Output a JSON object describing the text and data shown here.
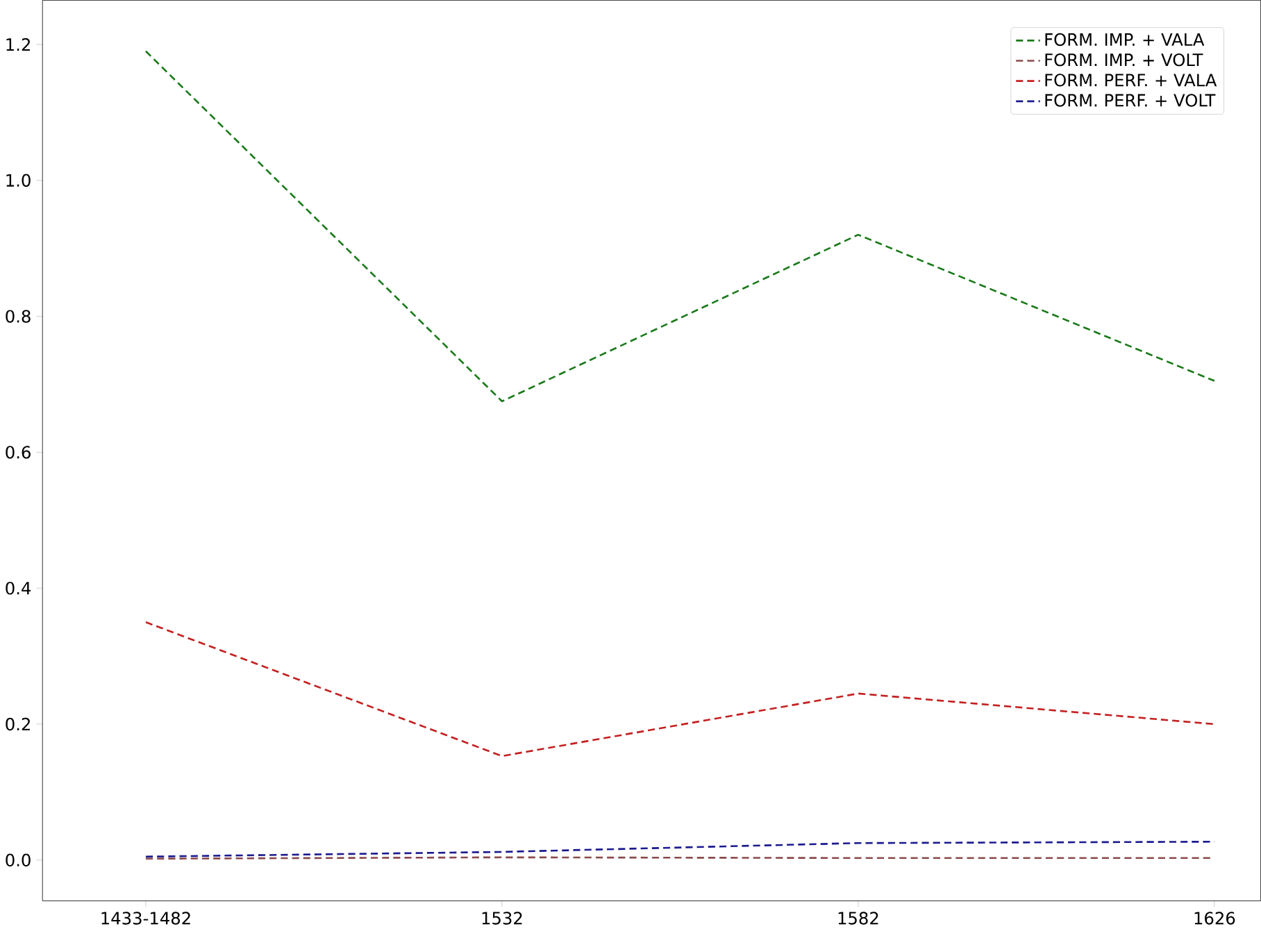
{
  "chart_data": {
    "type": "line",
    "categories": [
      "1433-1482",
      "1532",
      "1582",
      "1626"
    ],
    "series": [
      {
        "name": "FORM. IMP. + VALA",
        "color": "#1a7a1a",
        "values": [
          1.19,
          0.675,
          0.92,
          0.705
        ]
      },
      {
        "name": "FORM. IMP. + VOLT",
        "color": "#8b4a4a",
        "values": [
          0.002,
          0.004,
          0.003,
          0.003
        ]
      },
      {
        "name": "FORM. PERF. + VALA",
        "color": "#c42020",
        "values": [
          0.35,
          0.153,
          0.245,
          0.2
        ]
      },
      {
        "name": "FORM. PERF. + VOLT",
        "color": "#1a1a8f",
        "values": [
          0.005,
          0.012,
          0.025,
          0.027
        ]
      }
    ],
    "ylim": [
      -0.06,
      1.265
    ],
    "yticks": [
      {
        "value": 0,
        "label": "0.0"
      },
      {
        "value": 0.2,
        "label": "0.2"
      },
      {
        "value": 0.4,
        "label": "0.4"
      },
      {
        "value": 0.6,
        "label": "0.6"
      },
      {
        "value": 0.8,
        "label": "0.8"
      },
      {
        "value": 1.0,
        "label": "1.0"
      },
      {
        "value": 1.2,
        "label": "1.2"
      }
    ],
    "legend": "top right",
    "line_style": "dashed",
    "marker": "none",
    "grid": false
  }
}
